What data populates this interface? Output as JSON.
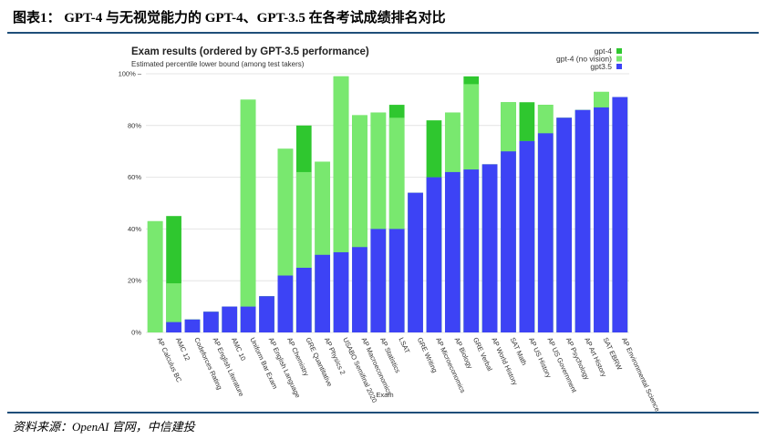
{
  "figure": {
    "title": "图表1： GPT-4 与无视觉能力的 GPT-4、GPT-3.5 在各考试成绩排名对比",
    "source": "资料来源：OpenAI 官网，中信建投"
  },
  "colors": {
    "gpt4": "#2fc72f",
    "gpt4_no_vision": "#79e86f",
    "gpt35": "#3d43f5",
    "rule": "#1f4e79"
  },
  "chart_data": {
    "type": "bar",
    "title": "Exam results (ordered by GPT-3.5 performance)",
    "subtitle": "Estimated percentile lower bound (among test takers)",
    "xlabel": "Exam",
    "ylabel": "",
    "ylim": [
      0,
      100
    ],
    "yticks": [
      "0%",
      "20%",
      "40%",
      "60%",
      "80%",
      "100% –"
    ],
    "ytick_values": [
      0,
      20,
      40,
      60,
      80,
      100
    ],
    "legend_position": "top-right",
    "categories": [
      "AP Calculus BC",
      "AMC 12",
      "Codeforces Rating",
      "AP English Literature",
      "AMC 10",
      "Uniform Bar Exam",
      "AP English Language",
      "AP Chemistry",
      "GRE Quantitative",
      "AP Physics 2",
      "USABO Semifinal 2020",
      "AP Macroeconomics",
      "AP Statistics",
      "LSAT",
      "GRE Writing",
      "AP Microeconomics",
      "AP Biology",
      "GRE Verbal",
      "AP World History",
      "SAT Math",
      "AP US History",
      "AP US Government",
      "AP Psychology",
      "AP Art History",
      "SAT EBRW",
      "AP Environmental Science"
    ],
    "series": [
      {
        "name": "gpt-4",
        "values": [
          43,
          45,
          5,
          8,
          10,
          90,
          14,
          71,
          80,
          66,
          99,
          84,
          85,
          88,
          54,
          82,
          85,
          99,
          65,
          89,
          89,
          88,
          83,
          86,
          93,
          91
        ]
      },
      {
        "name": "gpt-4 (no vision)",
        "values": [
          43,
          19,
          5,
          8,
          10,
          90,
          14,
          71,
          62,
          66,
          99,
          84,
          85,
          83,
          54,
          60,
          85,
          96,
          65,
          89,
          74,
          88,
          83,
          86,
          93,
          91
        ]
      },
      {
        "name": "gpt3.5",
        "values": [
          0,
          4,
          5,
          8,
          10,
          10,
          14,
          22,
          25,
          30,
          31,
          33,
          40,
          40,
          54,
          60,
          62,
          63,
          65,
          70,
          74,
          77,
          83,
          86,
          87,
          91
        ]
      }
    ]
  }
}
